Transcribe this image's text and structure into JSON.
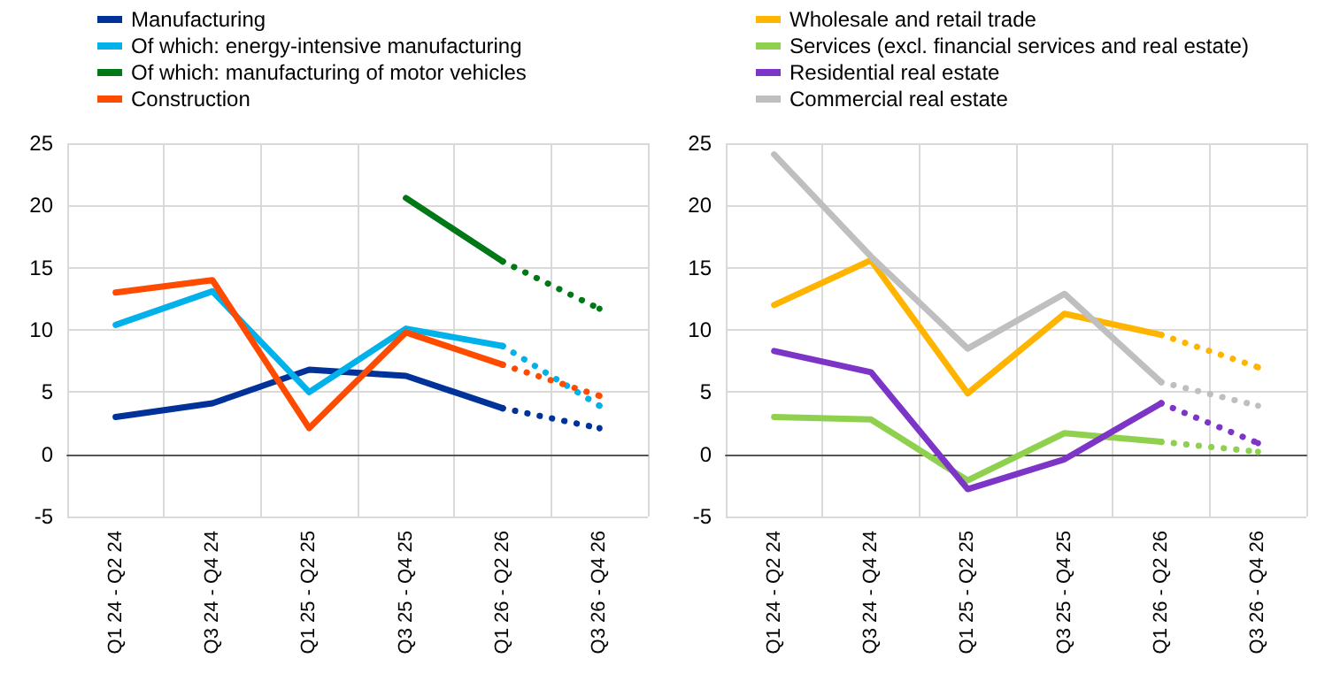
{
  "chart_data": [
    {
      "type": "line",
      "categories": [
        "Q1 24 - Q2 24",
        "Q3 24 - Q4 24",
        "Q1 25 - Q2 25",
        "Q3 25 - Q4 25",
        "Q1 26 - Q2 26",
        "Q3 26 - Q4 26"
      ],
      "ylim": [
        -5,
        25
      ],
      "yticks": [
        -5,
        0,
        5,
        10,
        15,
        20,
        25
      ],
      "grid": true,
      "legend": "top left",
      "marker": "none",
      "series": [
        {
          "name": "Manufacturing",
          "color": "#003299",
          "values": [
            3.0,
            4.1,
            6.8,
            6.3,
            3.7,
            null
          ]
        },
        {
          "name": "Of which: energy-intensive manufacturing",
          "color": "#00b1ea",
          "values": [
            10.4,
            13.1,
            5.0,
            10.1,
            8.7,
            null
          ]
        },
        {
          "name": "Of which: manufacturing of motor vehicles",
          "color": "#007816",
          "values": [
            null,
            null,
            null,
            20.6,
            15.5,
            null
          ]
        },
        {
          "name": "Construction",
          "color": "#ff4b00",
          "values": [
            13.0,
            14.0,
            2.1,
            9.8,
            7.2,
            null
          ]
        },
        {
          "color": "#003299",
          "line_style": "dotted",
          "values": [
            null,
            null,
            null,
            null,
            3.7,
            2.1
          ]
        },
        {
          "color": "#00b1ea",
          "line_style": "dotted",
          "values": [
            null,
            null,
            null,
            null,
            8.7,
            3.9
          ]
        },
        {
          "color": "#007816",
          "line_style": "dotted",
          "values": [
            null,
            null,
            null,
            null,
            15.5,
            11.7
          ]
        },
        {
          "color": "#ff4b00",
          "line_style": "dotted",
          "values": [
            null,
            null,
            null,
            null,
            7.2,
            4.7
          ]
        }
      ]
    },
    {
      "type": "line",
      "categories": [
        "Q1 24 - Q2 24",
        "Q3 24 - Q4 24",
        "Q1 25 - Q2 25",
        "Q3 25 - Q4 25",
        "Q1 26 - Q2 26",
        "Q3 26 - Q4 26"
      ],
      "ylim": [
        -5,
        25
      ],
      "yticks": [
        -5,
        0,
        5,
        10,
        15,
        20,
        25
      ],
      "grid": true,
      "legend": "top left",
      "marker": "none",
      "series": [
        {
          "name": "Wholesale and retail trade",
          "color": "#ffb400",
          "values": [
            12.0,
            15.6,
            4.9,
            11.3,
            9.6,
            null
          ]
        },
        {
          "name": "Services (excl. financial services and real estate)",
          "color": "#8fd14f",
          "values": [
            3.0,
            2.8,
            -2.1,
            1.7,
            1.0,
            null
          ]
        },
        {
          "name": "Residential real estate",
          "color": "#7d35c8",
          "values": [
            8.3,
            6.6,
            -2.8,
            -0.4,
            4.1,
            null
          ]
        },
        {
          "name": "Commercial real estate",
          "color": "#bfbfbf",
          "values": [
            24.1,
            15.9,
            8.5,
            12.9,
            5.8,
            null
          ]
        },
        {
          "color": "#ffb400",
          "line_style": "dotted",
          "values": [
            null,
            null,
            null,
            null,
            9.6,
            7.0
          ]
        },
        {
          "color": "#8fd14f",
          "line_style": "dotted",
          "values": [
            null,
            null,
            null,
            null,
            1.0,
            0.2
          ]
        },
        {
          "color": "#7d35c8",
          "line_style": "dotted",
          "values": [
            null,
            null,
            null,
            null,
            4.1,
            0.9
          ]
        },
        {
          "color": "#bfbfbf",
          "line_style": "dotted",
          "values": [
            null,
            null,
            null,
            null,
            5.8,
            3.9
          ]
        }
      ]
    }
  ]
}
